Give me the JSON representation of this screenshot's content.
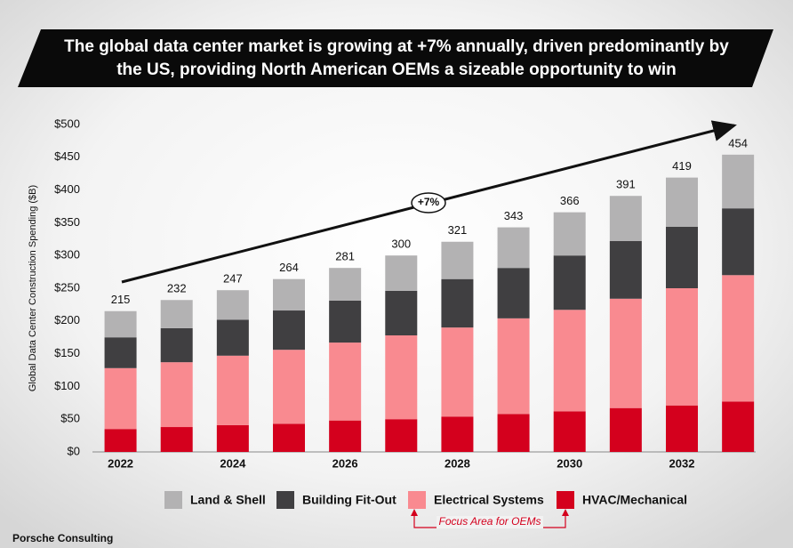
{
  "chart_data": {
    "type": "stacked-bar",
    "title": "The global data center market is growing at +7% annually, driven predominantly by the US, providing North American OEMs a sizeable opportunity to win",
    "y_label": "Global Data Center Construction Spending ($B)",
    "categories": [
      "2022",
      null,
      "2024",
      null,
      "2026",
      null,
      "2028",
      null,
      "2030",
      null,
      "2032",
      null
    ],
    "series": [
      {
        "name": "Land & Shell",
        "color": "#b3b2b3",
        "values": [
          40,
          43,
          45,
          48,
          50,
          54,
          57,
          62,
          66,
          69,
          75,
          82
        ]
      },
      {
        "name": "Building Fit-Out",
        "color": "#403f41",
        "values": [
          47,
          52,
          55,
          60,
          64,
          68,
          74,
          77,
          83,
          88,
          94,
          102
        ]
      },
      {
        "name": "Electrical Systems",
        "color": "#f98a90",
        "values": [
          93,
          99,
          106,
          113,
          119,
          128,
          136,
          146,
          155,
          167,
          179,
          193
        ]
      },
      {
        "name": "HVAC/Mechanical",
        "color": "#d4001d",
        "values": [
          35,
          38,
          41,
          43,
          48,
          50,
          54,
          58,
          62,
          67,
          71,
          77
        ]
      }
    ],
    "totals": [
      215,
      232,
      247,
      264,
      281,
      300,
      321,
      343,
      366,
      391,
      419,
      454
    ],
    "growth_label": "+7%",
    "focus_label": "Focus Area for OEMs",
    "source": "Porsche Consulting",
    "ylim": [
      0,
      500
    ],
    "yticks": [
      {
        "value": 0,
        "label": "$0"
      },
      {
        "value": 50,
        "label": "$50"
      },
      {
        "value": 100,
        "label": "$100"
      },
      {
        "value": 150,
        "label": "$150"
      },
      {
        "value": 200,
        "label": "$200"
      },
      {
        "value": 250,
        "label": "$250"
      },
      {
        "value": 300,
        "label": "$300"
      },
      {
        "value": 350,
        "label": "$350"
      },
      {
        "value": 400,
        "label": "$400"
      },
      {
        "value": 450,
        "label": "$450"
      },
      {
        "value": 500,
        "label": "$500"
      }
    ],
    "grid": false
  }
}
